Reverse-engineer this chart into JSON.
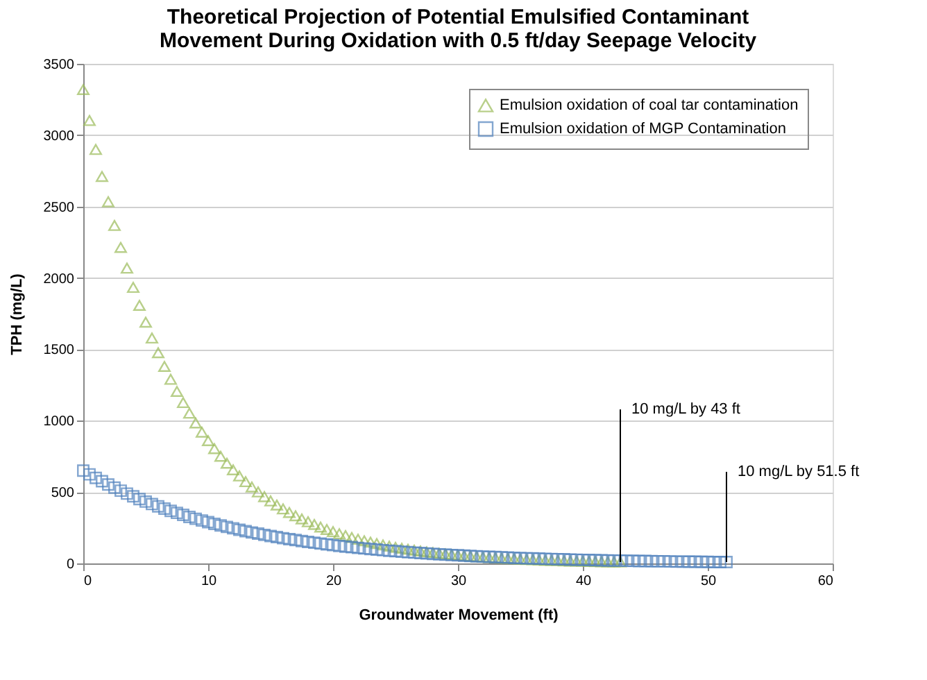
{
  "chart_data": {
    "type": "scatter",
    "title": [
      "Theoretical Projection of Potential Emulsified Contaminant",
      "Movement During Oxidation with 0.5 ft/day Seepage Velocity"
    ],
    "xlabel": "Groundwater Movement (ft)",
    "ylabel": "TPH (mg/L)",
    "xlim": [
      0,
      60
    ],
    "xticks": [
      0,
      10,
      20,
      30,
      40,
      50,
      60
    ],
    "ylim": [
      0,
      3500
    ],
    "yticks": [
      0,
      500,
      1000,
      1500,
      2000,
      2500,
      3000,
      3500
    ],
    "grid": "y",
    "legend": "top right",
    "series": [
      {
        "name": "Emulsion oxidation of coal tar contamination",
        "color": "#9bbb59",
        "marker": "triangle",
        "x": [
          0,
          0.5,
          1,
          1.5,
          2,
          2.5,
          3,
          3.5,
          4,
          4.5,
          5,
          5.5,
          6,
          6.5,
          7,
          7.5,
          8,
          8.5,
          9,
          9.5,
          10,
          10.5,
          11,
          11.5,
          12,
          12.5,
          13,
          13.5,
          14,
          14.5,
          15,
          15.5,
          16,
          16.5,
          17,
          17.5,
          18,
          18.5,
          19,
          19.5,
          20,
          20.5,
          21,
          21.5,
          22,
          22.5,
          23,
          23.5,
          24,
          24.5,
          25,
          25.5,
          26,
          26.5,
          27,
          27.5,
          28,
          28.5,
          29,
          29.5,
          30,
          30.5,
          31,
          31.5,
          32,
          32.5,
          33,
          33.5,
          34,
          34.5,
          35,
          35.5,
          36,
          36.5,
          37,
          37.5,
          38,
          38.5,
          39,
          39.5,
          40,
          40.5,
          41,
          41.5,
          42,
          42.5,
          43
        ],
        "values": [
          3320,
          3103,
          2900,
          2711,
          2534,
          2368,
          2214,
          2069,
          1934,
          1808,
          1690,
          1579,
          1476,
          1380,
          1290,
          1205,
          1127,
          1053,
          984,
          920,
          860,
          804,
          751,
          702,
          656,
          613,
          573,
          536,
          501,
          468,
          438,
          409,
          382,
          357,
          334,
          312,
          292,
          273,
          255,
          238,
          223,
          208,
          195,
          182,
          170,
          159,
          149,
          139,
          130,
          121,
          113,
          106,
          99,
          93,
          87,
          81,
          76,
          71,
          66,
          62,
          58,
          54,
          51,
          47,
          44,
          41,
          39,
          36,
          34,
          32,
          29,
          27,
          26,
          24,
          22,
          21,
          20,
          18,
          17,
          16,
          15,
          14,
          13,
          12,
          11,
          11,
          10
        ]
      },
      {
        "name": "Emulsion oxidation of MGP Contamination",
        "color": "#4f81bd",
        "marker": "square",
        "x": [
          0,
          0.5,
          1,
          1.5,
          2,
          2.5,
          3,
          3.5,
          4,
          4.5,
          5,
          5.5,
          6,
          6.5,
          7,
          7.5,
          8,
          8.5,
          9,
          9.5,
          10,
          10.5,
          11,
          11.5,
          12,
          12.5,
          13,
          13.5,
          14,
          14.5,
          15,
          15.5,
          16,
          16.5,
          17,
          17.5,
          18,
          18.5,
          19,
          19.5,
          20,
          20.5,
          21,
          21.5,
          22,
          22.5,
          23,
          23.5,
          24,
          24.5,
          25,
          25.5,
          26,
          26.5,
          27,
          27.5,
          28,
          28.5,
          29,
          29.5,
          30,
          30.5,
          31,
          31.5,
          32,
          32.5,
          33,
          33.5,
          34,
          34.5,
          35,
          35.5,
          36,
          36.5,
          37,
          37.5,
          38,
          38.5,
          39,
          39.5,
          40,
          40.5,
          41,
          41.5,
          42,
          42.5,
          43,
          43.5,
          44,
          44.5,
          45,
          45.5,
          46,
          46.5,
          47,
          47.5,
          48,
          48.5,
          49,
          49.5,
          50,
          50.5,
          51,
          51.5
        ],
        "values": [
          650,
          624,
          599,
          576,
          553,
          531,
          510,
          489,
          470,
          451,
          433,
          416,
          400,
          384,
          368,
          354,
          340,
          326,
          313,
          301,
          289,
          277,
          266,
          256,
          246,
          236,
          226,
          217,
          209,
          200,
          192,
          185,
          177,
          170,
          164,
          157,
          151,
          145,
          139,
          134,
          128,
          123,
          118,
          114,
          109,
          105,
          101,
          97,
          93,
          89,
          86,
          82,
          79,
          76,
          73,
          70,
          67,
          64,
          62,
          59,
          57,
          55,
          52,
          50,
          48,
          46,
          45,
          43,
          41,
          39,
          38,
          36,
          35,
          34,
          32,
          31,
          30,
          29,
          27,
          26,
          25,
          24,
          23,
          22,
          21,
          20,
          20,
          19,
          18,
          17,
          17,
          16,
          15,
          15,
          14,
          13,
          13,
          12,
          12,
          11,
          11,
          10,
          10,
          10
        ]
      }
    ],
    "annotations": [
      {
        "text": "10 mg/L by 43 ft",
        "x": 43,
        "y": 10
      },
      {
        "text": "10 mg/L by 51.5 ft",
        "x": 51.5,
        "y": 10
      }
    ]
  }
}
